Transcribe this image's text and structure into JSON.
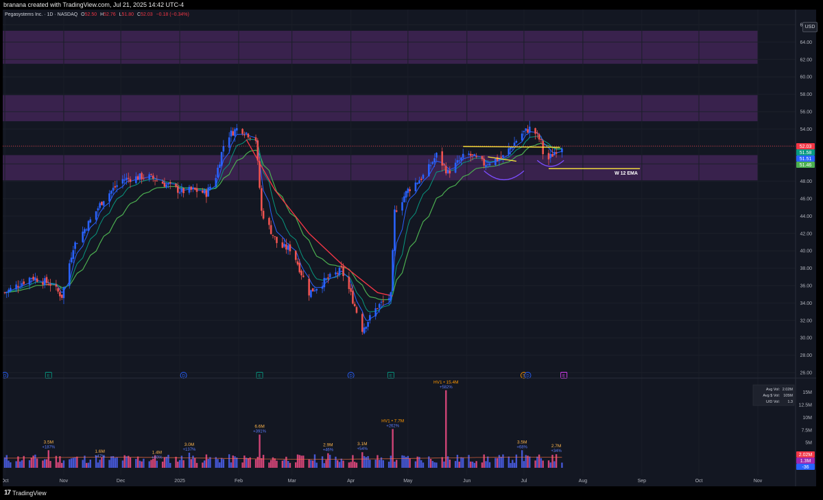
{
  "header": {
    "attribution": "branana created with TradingView.com, Jul 21, 2025 14:42 UTC-4"
  },
  "legend": {
    "symbol": "Pegasystems Inc. · 1D · NASDAQ",
    "o_label": "O",
    "o_value": "52.50",
    "h_label": "H",
    "h_value": "52.76",
    "l_label": "L",
    "l_value": "51.80",
    "c_label": "C",
    "c_value": "52.03",
    "change": "−0.18 (−0.34%)"
  },
  "currency": "USD",
  "footer": {
    "logo_text": "TradingView",
    "logo_glyph": "17"
  },
  "colors": {
    "up": "#ef5350",
    "down": "#2962ff",
    "zone": "#3b2350",
    "ema_fast": "#2962ff",
    "ema_mid": "#089981",
    "ema_slow": "#4caf50",
    "ema_red": "#f23645",
    "annotation": "#ffeb3b"
  },
  "chart_data": {
    "type": "candlestick",
    "title": "Pegasystems Inc. · 1D · NASDAQ",
    "price_axis": {
      "min": 26,
      "max": 66,
      "step": 2,
      "labels": [
        "26.00",
        "28.00",
        "30.00",
        "32.00",
        "34.00",
        "36.00",
        "38.00",
        "40.00",
        "42.00",
        "44.00",
        "46.00",
        "48.00",
        "50.00",
        "52.00",
        "54.00",
        "56.00",
        "58.00",
        "60.00",
        "62.00",
        "64.00",
        "66.00"
      ]
    },
    "time_axis": {
      "dates": [
        "2024-10-01",
        "2024-11-01",
        "2024-12-01",
        "2025-01-01",
        "2025-02-01",
        "2025-03-01",
        "2025-04-01",
        "2025-05-01",
        "2025-06-01",
        "2025-07-01",
        "2025-08-01",
        "2025-09-01",
        "2025-10-01",
        "2025-11-01"
      ],
      "labels": [
        "Oct",
        "Nov",
        "Dec",
        "2025",
        "Feb",
        "Mar",
        "Apr",
        "May",
        "Jun",
        "Jul",
        "Aug",
        "Sep",
        "Oct",
        "Nov"
      ]
    },
    "price_path": {
      "start": "2024-10-01",
      "end": "2025-07-21",
      "points": [
        [
          "2024-10-01",
          35.2
        ],
        [
          "2024-10-15",
          37.0
        ],
        [
          "2024-10-25",
          36.2
        ],
        [
          "2024-10-31",
          34.8
        ],
        [
          "2024-11-06",
          40.5
        ],
        [
          "2024-11-15",
          43.5
        ],
        [
          "2024-11-22",
          46.0
        ],
        [
          "2024-12-02",
          48.2
        ],
        [
          "2024-12-15",
          48.6
        ],
        [
          "2025-01-02",
          46.8
        ],
        [
          "2025-01-08",
          47.0
        ],
        [
          "2025-01-15",
          46.6
        ],
        [
          "2025-01-20",
          48.6
        ],
        [
          "2025-01-25",
          53.0
        ],
        [
          "2025-02-01",
          54.2
        ],
        [
          "2025-02-10",
          52.8
        ],
        [
          "2025-02-13",
          44.5
        ],
        [
          "2025-02-22",
          40.5
        ],
        [
          "2025-03-01",
          40.2
        ],
        [
          "2025-03-10",
          35.2
        ],
        [
          "2025-03-20",
          36.8
        ],
        [
          "2025-03-27",
          37.8
        ],
        [
          "2025-04-01",
          35.0
        ],
        [
          "2025-04-07",
          31.0
        ],
        [
          "2025-04-15",
          33.6
        ],
        [
          "2025-04-22",
          34.8
        ],
        [
          "2025-04-24",
          44.5
        ],
        [
          "2025-05-01",
          47.0
        ],
        [
          "2025-05-10",
          48.8
        ],
        [
          "2025-05-16",
          51.0
        ],
        [
          "2025-05-22",
          49.0
        ],
        [
          "2025-06-01",
          51.2
        ],
        [
          "2025-06-10",
          50.0
        ],
        [
          "2025-06-20",
          50.8
        ],
        [
          "2025-06-30",
          53.5
        ],
        [
          "2025-07-05",
          54.2
        ],
        [
          "2025-07-10",
          52.5
        ],
        [
          "2025-07-12",
          50.0
        ],
        [
          "2025-07-18",
          51.6
        ],
        [
          "2025-07-21",
          52.03
        ]
      ]
    },
    "ema_path": {
      "points": [
        [
          "2024-10-01",
          35.3
        ],
        [
          "2024-11-06",
          38.5
        ],
        [
          "2024-12-02",
          45.5
        ],
        [
          "2025-01-10",
          47.0
        ],
        [
          "2025-01-25",
          51.0
        ],
        [
          "2025-02-05",
          52.8
        ],
        [
          "2025-02-20",
          47.0
        ],
        [
          "2025-03-10",
          42.0
        ],
        [
          "2025-03-27",
          38.5
        ],
        [
          "2025-04-15",
          35.2
        ],
        [
          "2025-04-23",
          34.8
        ],
        [
          "2025-05-10",
          46.5
        ],
        [
          "2025-06-01",
          49.5
        ],
        [
          "2025-06-20",
          50.5
        ],
        [
          "2025-07-05",
          52.5
        ],
        [
          "2025-07-21",
          51.5
        ]
      ]
    },
    "last_values": [
      {
        "name": "Close",
        "value": "52.03",
        "color": "#f23645"
      },
      {
        "name": "EMA",
        "value": "51.58",
        "color": "#089981"
      },
      {
        "name": "EMA",
        "value": "51.51",
        "color": "#2962ff"
      },
      {
        "name": "EMA",
        "value": "51.46",
        "color": "#4caf50"
      }
    ],
    "zones": [
      {
        "from": 61.5,
        "to": 65.3
      },
      {
        "from": 54.9,
        "to": 57.9
      },
      {
        "from": 48.1,
        "to": 51.0
      }
    ],
    "annotations": [
      {
        "type": "hline",
        "price": 52.05,
        "color": "#f23645",
        "style": "dotted"
      },
      {
        "type": "line",
        "start": [
          "2025-05-30",
          52.0
        ],
        "end": [
          "2025-07-20",
          51.9
        ],
        "color": "#ffeb3b"
      },
      {
        "type": "line",
        "start": [
          "2025-06-12",
          50.8
        ],
        "end": [
          "2025-06-27",
          50.3
        ],
        "color": "#ffeb3b"
      },
      {
        "type": "line",
        "start": [
          "2025-07-14",
          49.45
        ],
        "end": [
          "2025-08-31",
          49.45
        ],
        "color": "#ffeb3b",
        "label": "W 12 EMA"
      },
      {
        "type": "arc",
        "start": [
          "2025-06-10",
          49.2
        ],
        "end": [
          "2025-07-01",
          49.2
        ],
        "color": "#7c4dff"
      },
      {
        "type": "arc",
        "start": [
          "2025-07-08",
          50.4
        ],
        "end": [
          "2025-07-22",
          50.4
        ],
        "color": "#7c4dff"
      }
    ],
    "events": [
      {
        "date": "2024-10-01",
        "letter": "D",
        "kind": "dividend"
      },
      {
        "date": "2024-10-24",
        "letter": "E",
        "kind": "earnings"
      },
      {
        "date": "2025-01-03",
        "letter": "D",
        "kind": "dividend"
      },
      {
        "date": "2025-02-12",
        "letter": "E",
        "kind": "earnings"
      },
      {
        "date": "2025-04-01",
        "letter": "D",
        "kind": "dividend"
      },
      {
        "date": "2025-04-22",
        "letter": "E",
        "kind": "earnings"
      },
      {
        "date": "2025-07-01",
        "letter": "S",
        "kind": "split"
      },
      {
        "date": "2025-07-03",
        "letter": "D",
        "kind": "dividend"
      },
      {
        "date": "2025-07-22",
        "letter": "E",
        "kind": "earnings"
      }
    ],
    "volume": {
      "axis_labels": [
        "5M",
        "7.5M",
        "10M",
        "12.5M",
        "15M"
      ],
      "axis_values": [
        5,
        7.5,
        10,
        12.5,
        15
      ],
      "max": 17,
      "baseline_avg": 2.0,
      "spikes": [
        {
          "date": "2024-10-24",
          "value": 3.5,
          "label": "3.5M",
          "pct": "+187%"
        },
        {
          "date": "2024-11-20",
          "value": 1.6,
          "label": "1.6M",
          "pct": "+47%"
        },
        {
          "date": "2024-12-20",
          "value": 1.4,
          "label": "1.4M",
          "pct": "+40%"
        },
        {
          "date": "2025-01-06",
          "value": 3.0,
          "label": "3.0M",
          "pct": "+137%"
        },
        {
          "date": "2025-02-12",
          "value": 6.6,
          "label": "6.6M",
          "pct": "+391%"
        },
        {
          "date": "2025-03-20",
          "value": 2.9,
          "label": "2.9M",
          "pct": "+46%"
        },
        {
          "date": "2025-04-07",
          "value": 3.1,
          "label": "3.1M",
          "pct": "+54%"
        },
        {
          "date": "2025-04-23",
          "value": 7.7,
          "label": "HV1 • 7.7M",
          "pct": "+262%",
          "hv": true
        },
        {
          "date": "2025-05-21",
          "value": 15.4,
          "label": "HV1 • 15.4M",
          "pct": "+582%",
          "hv": true
        },
        {
          "date": "2025-06-30",
          "value": 3.5,
          "label": "3.5M",
          "pct": "+68%"
        },
        {
          "date": "2025-07-18",
          "value": 2.7,
          "label": "2.7M",
          "pct": "+34%"
        }
      ],
      "stats": [
        {
          "label": "Avg Vol:",
          "value": "2.02M"
        },
        {
          "label": "Avg $ Vol:",
          "value": "105M"
        },
        {
          "label": "U/D Vol:",
          "value": "1.3"
        }
      ],
      "last_values": [
        {
          "value": "2.02M",
          "color": "#f23645"
        },
        {
          "value": "1.3M",
          "color": "#9c27b0"
        },
        {
          "value": "-36",
          "color": "#2962ff"
        }
      ]
    }
  }
}
